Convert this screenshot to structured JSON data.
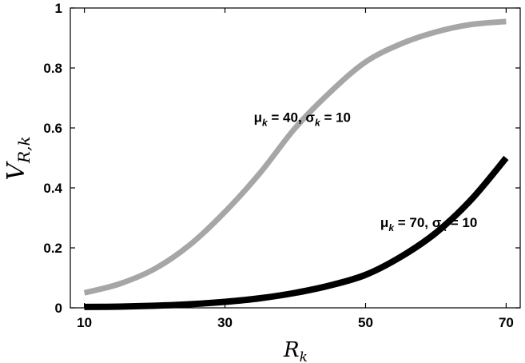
{
  "chart_data": {
    "type": "line",
    "title": "",
    "xlabel": {
      "main": "R",
      "sub": "k"
    },
    "ylabel": {
      "main": "V",
      "sub": "R,k"
    },
    "xlim": [
      8,
      72
    ],
    "ylim": [
      0,
      1
    ],
    "xticks": [
      "10",
      "30",
      "50",
      "70"
    ],
    "yticks": [
      "0",
      "0.2",
      "0.4",
      "0.6",
      "0.8",
      "1"
    ],
    "grid": false,
    "legend": "none",
    "series": [
      {
        "color": "#a6a6a6",
        "x": [
          10,
          15,
          20,
          25,
          30,
          35,
          40,
          45,
          50,
          55,
          60,
          65,
          70
        ],
        "y": [
          0.05,
          0.08,
          0.13,
          0.21,
          0.32,
          0.45,
          0.6,
          0.72,
          0.82,
          0.88,
          0.92,
          0.945,
          0.955
        ]
      },
      {
        "color": "#000000",
        "x": [
          10,
          15,
          20,
          25,
          30,
          35,
          40,
          45,
          50,
          55,
          60,
          65,
          70
        ],
        "y": [
          0.003,
          0.004,
          0.007,
          0.012,
          0.02,
          0.032,
          0.05,
          0.075,
          0.11,
          0.17,
          0.25,
          0.36,
          0.5
        ]
      }
    ],
    "annotations": [
      {
        "x": 41,
        "y": 0.62,
        "parts": [
          {
            "t": "μ"
          },
          {
            "t": "k",
            "sub": true
          },
          {
            "t": " = 40, σ"
          },
          {
            "t": "k",
            "sub": true
          },
          {
            "t": " = 10"
          }
        ]
      },
      {
        "x": 59,
        "y": 0.27,
        "parts": [
          {
            "t": "μ"
          },
          {
            "t": "k",
            "sub": true
          },
          {
            "t": " = 70, σ"
          },
          {
            "t": "k",
            "sub": true
          },
          {
            "t": " = 10"
          }
        ]
      }
    ]
  }
}
